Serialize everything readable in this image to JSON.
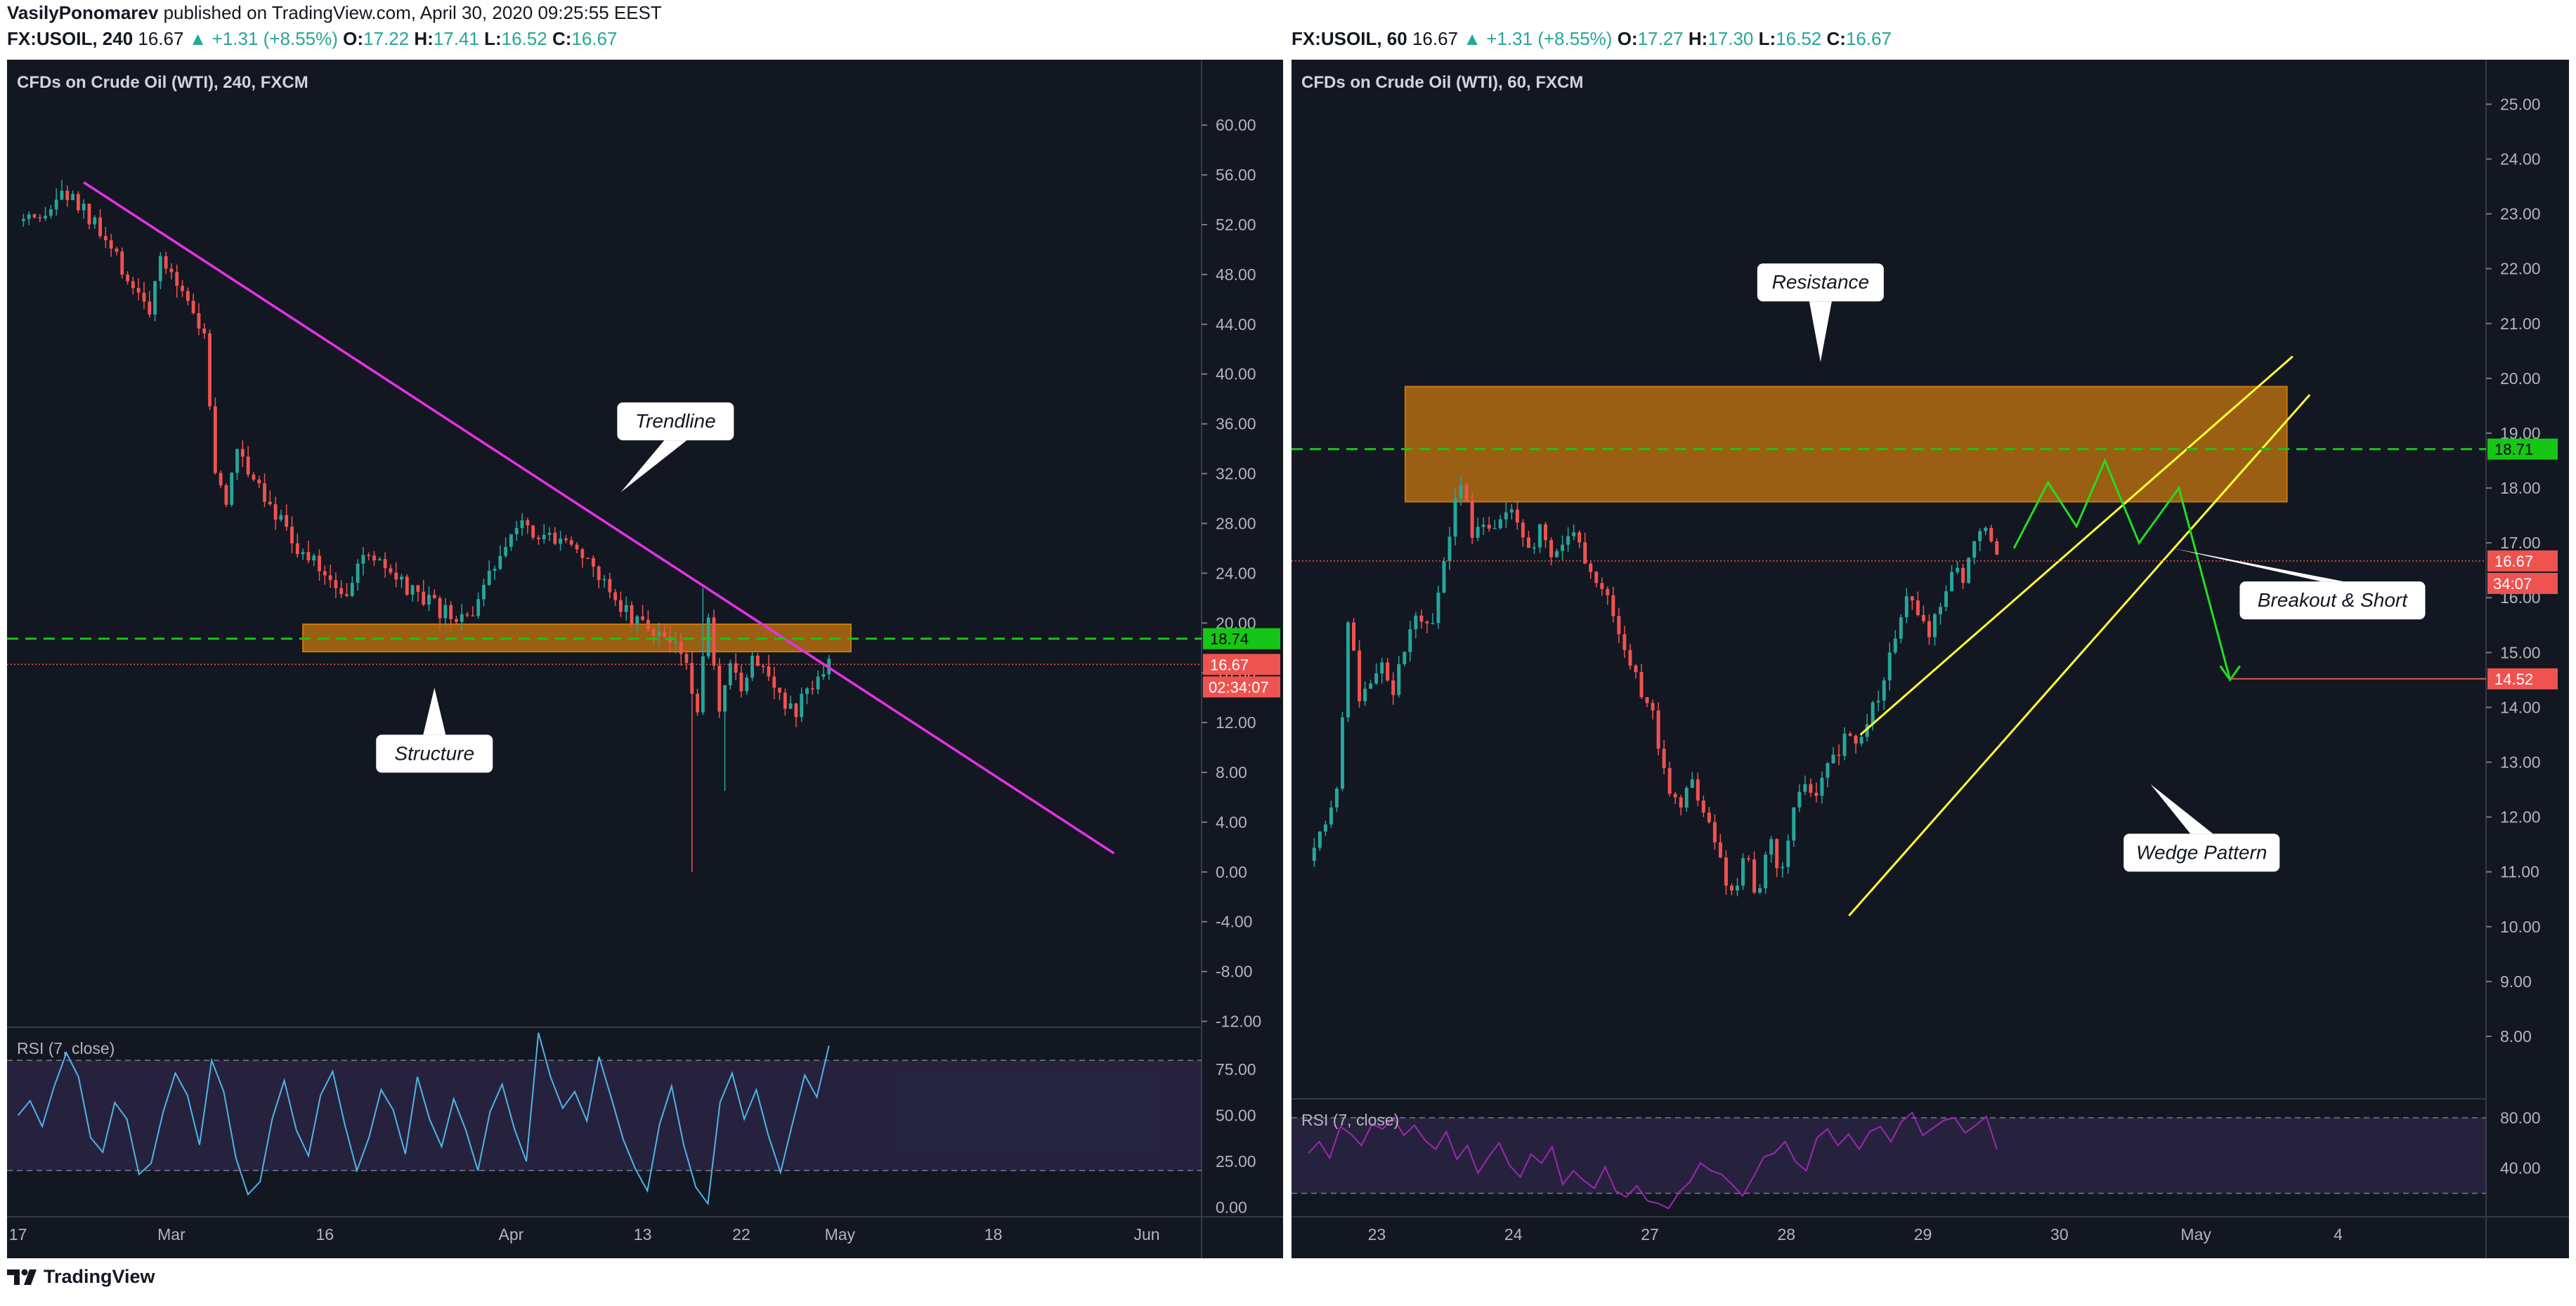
{
  "header": {
    "author": "VasilyPonomarev",
    "published_text": " published on TradingView.com, April 30, 2020 09:25:55 EEST"
  },
  "branding": {
    "logo_text": "TradingView",
    "logo_icon": "tradingview-logo-icon"
  },
  "colors": {
    "background": "#131722",
    "up": "#26a69a",
    "down": "#ef5350",
    "magenta": "#e632e6",
    "orange_zone": "#c8780e",
    "green_dashed": "#2ecc2e",
    "yellow": "#ffff33",
    "rsi_left": "#4fb4e6",
    "rsi_right": "#9c27b0"
  },
  "left_symbol": {
    "ticker": "FX:USOIL, 240",
    "last": "16.67",
    "change": "▲ +1.31 (+8.55%)",
    "o_label": "O:",
    "o": "17.22",
    "h_label": "H:",
    "h": "17.41",
    "l_label": "L:",
    "l": "16.52",
    "c_label": "C:",
    "c": "16.67"
  },
  "right_symbol": {
    "ticker": "FX:USOIL, 60",
    "last": "16.67",
    "change": "▲ +1.31 (+8.55%)",
    "o_label": "O:",
    "o": "17.27",
    "h_label": "H:",
    "h": "17.30",
    "l_label": "L:",
    "l": "16.52",
    "c_label": "C:",
    "c": "16.67"
  },
  "chart_data": [
    {
      "type": "candlestick",
      "title": "CFDs on Crude Oil (WTI), 240, FXCM",
      "y_ticks": [
        "60.00",
        "56.00",
        "52.00",
        "48.00",
        "44.00",
        "40.00",
        "36.00",
        "32.00",
        "28.00",
        "24.00",
        "20.00",
        "16.00",
        "12.00",
        "8.00",
        "4.00",
        "0.00",
        "-4.00",
        "-8.00",
        "-12.00"
      ],
      "ylim": [
        -14,
        63
      ],
      "x_ticks": [
        "17",
        "Mar",
        "16",
        "Apr",
        "13",
        "22",
        "May",
        "18",
        "Jun"
      ],
      "x_tick_times": [
        0,
        14,
        28,
        45,
        57,
        66,
        75,
        89,
        103
      ],
      "x_range": [
        -1,
        108
      ],
      "price_path": [
        [
          0,
          52.3
        ],
        [
          2,
          51.8
        ],
        [
          4,
          54.6
        ],
        [
          6,
          53.1
        ],
        [
          8,
          50.5
        ],
        [
          10,
          47.8
        ],
        [
          12,
          45.2
        ],
        [
          13,
          48.7
        ],
        [
          15,
          47.1
        ],
        [
          17,
          42.9
        ],
        [
          18,
          32.2
        ],
        [
          19,
          29.4
        ],
        [
          20,
          34.1
        ],
        [
          22,
          31.2
        ],
        [
          24,
          28.3
        ],
        [
          26,
          25.4
        ],
        [
          28,
          24.1
        ],
        [
          30,
          22.5
        ],
        [
          32,
          25.8
        ],
        [
          34,
          23.6
        ],
        [
          36,
          22.3
        ],
        [
          38,
          21.2
        ],
        [
          40,
          20.1
        ],
        [
          42,
          21.4
        ],
        [
          44,
          25.6
        ],
        [
          45,
          27.9
        ],
        [
          46,
          28.4
        ],
        [
          48,
          26.9
        ],
        [
          50,
          27.3
        ],
        [
          52,
          24.5
        ],
        [
          54,
          22.9
        ],
        [
          56,
          20.4
        ],
        [
          58,
          19.6
        ],
        [
          60,
          18.2
        ],
        [
          61,
          16.2
        ],
        [
          62,
          13.4
        ],
        [
          63,
          19.8
        ],
        [
          64,
          12.5
        ],
        [
          65,
          16.1
        ],
        [
          66,
          14.8
        ],
        [
          67,
          17.5
        ],
        [
          68,
          16.9
        ],
        [
          69,
          15.4
        ],
        [
          70,
          13.2
        ],
        [
          71,
          12.8
        ],
        [
          72,
          14.6
        ],
        [
          73,
          16.2
        ],
        [
          74,
          16.67
        ]
      ],
      "candle_count": 148,
      "spikes": [
        {
          "t": 61.5,
          "low": 0.0
        },
        {
          "t": 62.5,
          "high": 22.8
        },
        {
          "t": 64.5,
          "low": 6.5
        }
      ],
      "price_lines": [
        {
          "value": 18.74,
          "label": "18.74",
          "color": "#16c616",
          "dash": true
        },
        {
          "value": 16.67,
          "label": "16.67",
          "color": "#ef5350",
          "dash": true
        }
      ],
      "countdown_label": "02:34:07",
      "zones": [
        {
          "t0": 26,
          "t1": 76,
          "y0": 17.7,
          "y1": 19.9
        }
      ],
      "trendline": {
        "p1": [
          6,
          55.4
        ],
        "p2": [
          100,
          1.5
        ]
      },
      "annotations": [
        {
          "text": "Trendline",
          "anchor": [
            55,
            30.5
          ],
          "box": [
            60,
            36.2
          ]
        },
        {
          "text": "Structure",
          "anchor": [
            38,
            14.8
          ],
          "box": [
            38,
            9.5
          ]
        }
      ],
      "rsi": {
        "label": "RSI (7, close)",
        "ticks": [
          "75.00",
          "50.00",
          "25.00",
          "0.00"
        ],
        "upper": 80,
        "lower": 20,
        "ylim": [
          -4,
          98
        ],
        "values": [
          50,
          58,
          44,
          66,
          84,
          71,
          38,
          30,
          57,
          48,
          18,
          24,
          52,
          73,
          61,
          34,
          80,
          63,
          27,
          7,
          14,
          48,
          69,
          42,
          28,
          61,
          74,
          45,
          20,
          38,
          64,
          53,
          29,
          71,
          48,
          33,
          59,
          42,
          20,
          52,
          67,
          43,
          25,
          95,
          71,
          54,
          63,
          47,
          82,
          60,
          37,
          21,
          9,
          45,
          66,
          34,
          11,
          2,
          57,
          73,
          48,
          64,
          39,
          19,
          46,
          72,
          60,
          88
        ]
      },
      "rsi_end_t": 74
    },
    {
      "type": "candlestick",
      "title": "CFDs on Crude Oil (WTI), 60, FXCM",
      "y_ticks": [
        "25.00",
        "24.00",
        "23.00",
        "22.00",
        "21.00",
        "20.00",
        "19.00",
        "18.00",
        "17.00",
        "16.00",
        "15.00",
        "14.00",
        "13.00",
        "12.00",
        "11.00",
        "10.00",
        "9.00",
        "8.00"
      ],
      "ylim": [
        7.5,
        25.3
      ],
      "x_ticks": [
        "23",
        "24",
        "27",
        "28",
        "29",
        "30",
        "May",
        "4"
      ],
      "x_tick_times": [
        12,
        36,
        60,
        84,
        108,
        132,
        156,
        181
      ],
      "x_range": [
        -3,
        207
      ],
      "price_path": [
        [
          0,
          11.2
        ],
        [
          3,
          11.9
        ],
        [
          5,
          12.4
        ],
        [
          7,
          15.7
        ],
        [
          9,
          14.1
        ],
        [
          11,
          14.3
        ],
        [
          13,
          14.8
        ],
        [
          15,
          14.2
        ],
        [
          17,
          15.2
        ],
        [
          19,
          15.6
        ],
        [
          21,
          15.4
        ],
        [
          23,
          16.1
        ],
        [
          25,
          17.4
        ],
        [
          27,
          18.1
        ],
        [
          29,
          17.1
        ],
        [
          31,
          17.3
        ],
        [
          33,
          17.1
        ],
        [
          35,
          17.6
        ],
        [
          37,
          17.2
        ],
        [
          39,
          16.8
        ],
        [
          41,
          17.3
        ],
        [
          43,
          16.7
        ],
        [
          45,
          17.2
        ],
        [
          47,
          17.0
        ],
        [
          49,
          16.7
        ],
        [
          51,
          16.2
        ],
        [
          53,
          15.8
        ],
        [
          55,
          15.3
        ],
        [
          57,
          14.6
        ],
        [
          59,
          14.2
        ],
        [
          61,
          13.7
        ],
        [
          63,
          12.5
        ],
        [
          65,
          12.2
        ],
        [
          67,
          12.7
        ],
        [
          69,
          12.3
        ],
        [
          71,
          11.6
        ],
        [
          73,
          10.9
        ],
        [
          75,
          10.7
        ],
        [
          77,
          11.4
        ],
        [
          79,
          10.3
        ],
        [
          81,
          11.8
        ],
        [
          83,
          10.7
        ],
        [
          85,
          12.2
        ],
        [
          87,
          12.7
        ],
        [
          89,
          12.3
        ],
        [
          91,
          12.9
        ],
        [
          93,
          13.1
        ],
        [
          95,
          13.6
        ],
        [
          97,
          13.3
        ],
        [
          99,
          13.9
        ],
        [
          101,
          14.4
        ],
        [
          103,
          15.3
        ],
        [
          105,
          16.1
        ],
        [
          107,
          15.6
        ],
        [
          109,
          15.4
        ],
        [
          111,
          15.9
        ],
        [
          113,
          16.5
        ],
        [
          115,
          16.3
        ],
        [
          117,
          16.9
        ],
        [
          119,
          17.4
        ],
        [
          121,
          16.67
        ]
      ],
      "candle_count": 122,
      "price_lines": [
        {
          "value": 18.71,
          "label": "18.71",
          "color": "#16c616",
          "dash": true
        },
        {
          "value": 16.67,
          "label": "16.67",
          "color": "#ef5350",
          "dash": true
        },
        {
          "value": 14.52,
          "label": "14.52",
          "color": "#ef5350",
          "dash": false
        }
      ],
      "countdown_label": "34:07",
      "zones": [
        {
          "t0": 17,
          "t1": 172,
          "y0": 17.75,
          "y1": 19.85
        }
      ],
      "wedge_lines": [
        {
          "p1": [
            95,
            10.2
          ],
          "p2": [
            176,
            19.7
          ]
        },
        {
          "p1": [
            97,
            13.5
          ],
          "p2": [
            173,
            20.4
          ]
        }
      ],
      "projection": [
        [
          124,
          16.9
        ],
        [
          130,
          18.1
        ],
        [
          135,
          17.3
        ],
        [
          140,
          18.5
        ],
        [
          146,
          17.0
        ],
        [
          153,
          18.0
        ],
        [
          162,
          14.5
        ]
      ],
      "annotations": [
        {
          "text": "Resistance",
          "anchor": [
            90,
            20.3
          ],
          "box": [
            90,
            21.75
          ]
        },
        {
          "text": "Breakout & Short",
          "anchor": [
            152,
            16.9
          ],
          "box": [
            180,
            15.95
          ]
        },
        {
          "text": "Wedge Pattern",
          "anchor": [
            148,
            12.6
          ],
          "box": [
            157,
            11.35
          ]
        }
      ],
      "rsi": {
        "label": "RSI (7, close)",
        "ticks": [
          "80.00",
          "40.00"
        ],
        "upper": 80,
        "lower": 20,
        "ylim": [
          3,
          95
        ],
        "values": [
          52,
          61,
          48,
          73,
          67,
          58,
          75,
          71,
          80,
          66,
          74,
          62,
          55,
          69,
          47,
          58,
          36,
          49,
          60,
          42,
          33,
          51,
          44,
          57,
          27,
          38,
          30,
          24,
          41,
          22,
          17,
          26,
          14,
          12,
          8,
          21,
          29,
          44,
          38,
          35,
          27,
          18,
          33,
          49,
          52,
          61,
          45,
          38,
          64,
          71,
          58,
          67,
          55,
          69,
          73,
          61,
          77,
          84,
          66,
          72,
          78,
          80,
          68,
          74,
          81,
          55
        ]
      },
      "rsi_end_t": 121
    }
  ]
}
